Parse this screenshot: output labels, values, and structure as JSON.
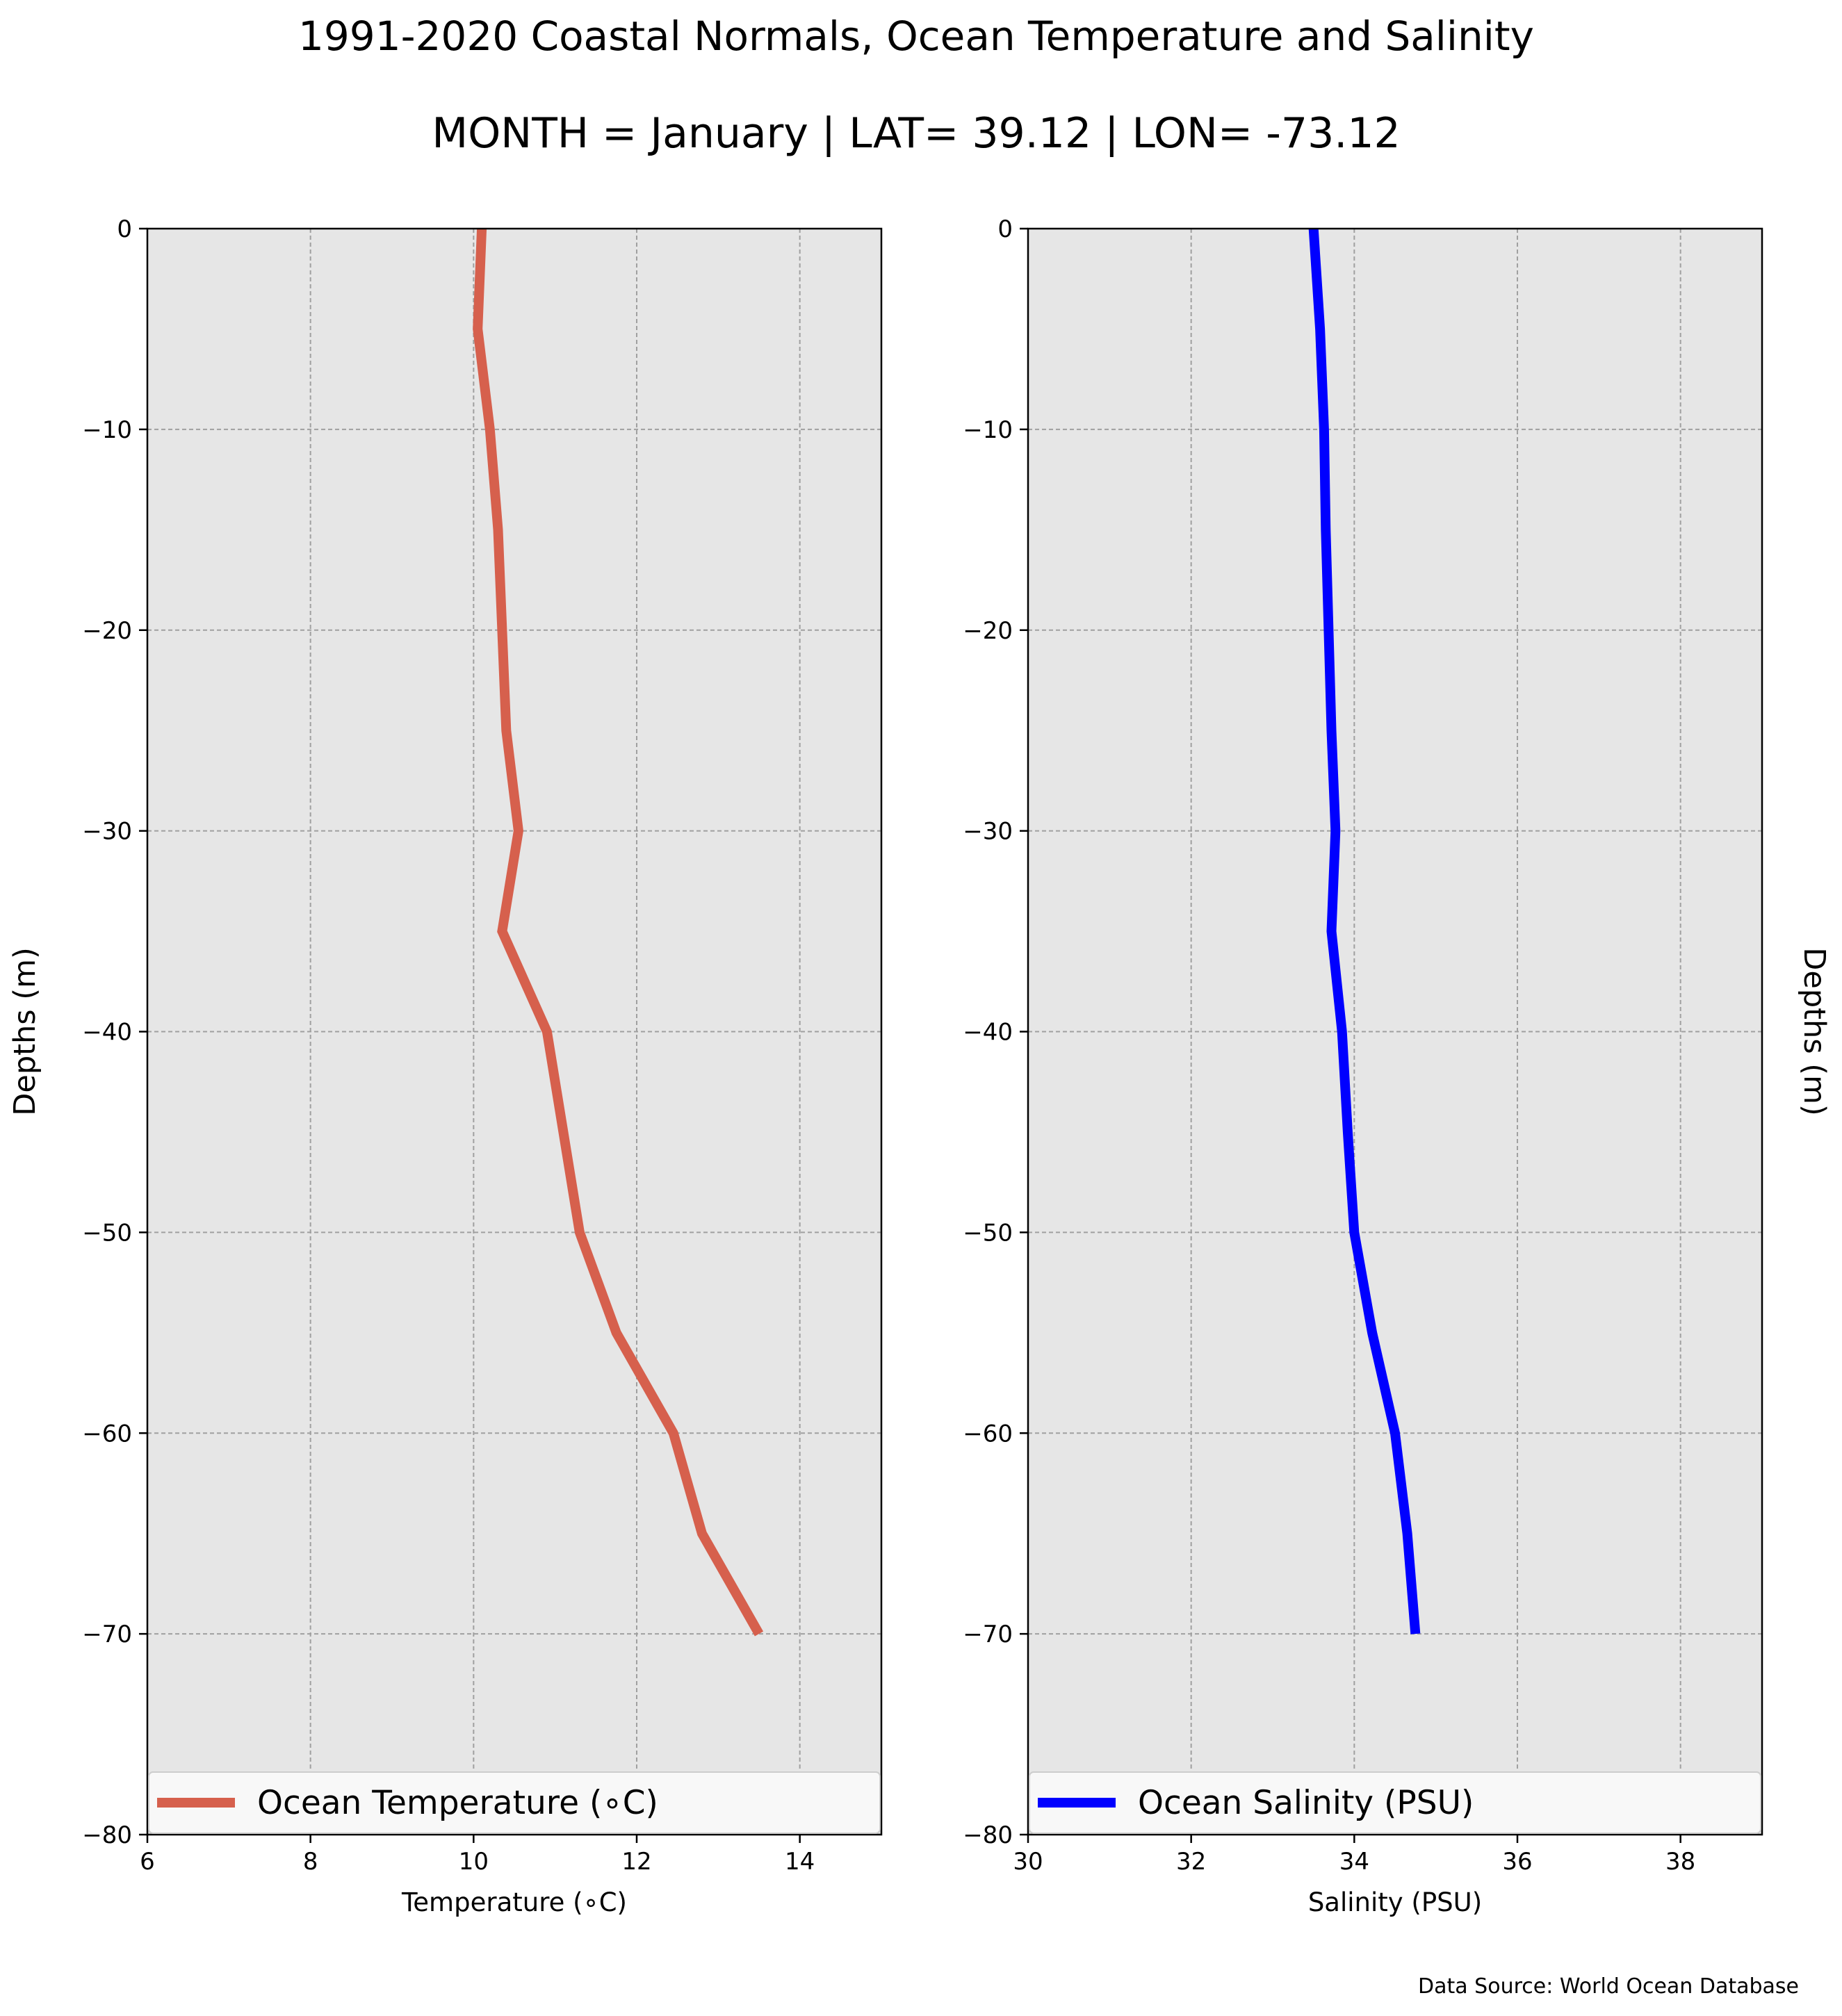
{
  "title": "1991-2020 Coastal Normals, Ocean Temperature and Salinity",
  "subtitle": "MONTH = January | LAT= 39.12 | LON= -73.12",
  "source_note": "Data Source: World Ocean Database",
  "colors": {
    "temperature": "#d6604d",
    "salinity": "#0000ff",
    "plot_background": "#e6e6e6",
    "grid": "#a0a0a0"
  },
  "chart_data": [
    {
      "type": "line",
      "panel": "left",
      "xlabel": "Temperature ($^\\circ$C)",
      "xlabel_display": "Temperature (∘C)",
      "ylabel": "Depths (m)",
      "ylabel_position": "left",
      "xlim": [
        6,
        15
      ],
      "ylim": [
        -80,
        0
      ],
      "xticks": [
        6,
        8,
        10,
        12,
        14
      ],
      "xtick_labels": [
        "6",
        "8",
        "10",
        "12",
        "14"
      ],
      "yticks": [
        0,
        -10,
        -20,
        -30,
        -40,
        -50,
        -60,
        -70,
        -80
      ],
      "ytick_labels": [
        "0",
        "−10",
        "−20",
        "−30",
        "−40",
        "−50",
        "−60",
        "−70",
        "−80"
      ],
      "grid": true,
      "legend_position": "bottom",
      "series": [
        {
          "name": "Ocean Temperature (∘C)",
          "color": "#d6604d",
          "x": [
            10.1,
            10.05,
            10.2,
            10.3,
            10.4,
            10.55,
            10.35,
            10.9,
            11.1,
            11.3,
            11.75,
            12.45,
            12.8,
            13.5
          ],
          "y": [
            0,
            -5,
            -10,
            -15,
            -25,
            -30,
            -35,
            -40,
            -45,
            -50,
            -55,
            -60,
            -65,
            -70
          ]
        }
      ]
    },
    {
      "type": "line",
      "panel": "right",
      "xlabel": "Salinity (PSU)",
      "ylabel": "Depths (m)",
      "ylabel_position": "right",
      "xlim": [
        30,
        39
      ],
      "ylim": [
        -80,
        0
      ],
      "xticks": [
        30,
        32,
        34,
        36,
        38
      ],
      "xtick_labels": [
        "30",
        "32",
        "34",
        "36",
        "38"
      ],
      "yticks": [
        0,
        -10,
        -20,
        -30,
        -40,
        -50,
        -60,
        -70,
        -80
      ],
      "ytick_labels": [
        "0",
        "−10",
        "−20",
        "−30",
        "−40",
        "−50",
        "−60",
        "−70",
        "−80"
      ],
      "grid": true,
      "legend_position": "bottom",
      "series": [
        {
          "name": "Ocean Salinity (PSU)",
          "color": "#0000ff",
          "x": [
            33.5,
            33.58,
            33.63,
            33.65,
            33.72,
            33.77,
            33.72,
            33.85,
            33.92,
            34.0,
            34.22,
            34.5,
            34.65,
            34.75
          ],
          "y": [
            0,
            -5,
            -10,
            -15,
            -25,
            -30,
            -35,
            -40,
            -45,
            -50,
            -55,
            -60,
            -65,
            -70
          ]
        }
      ]
    }
  ]
}
